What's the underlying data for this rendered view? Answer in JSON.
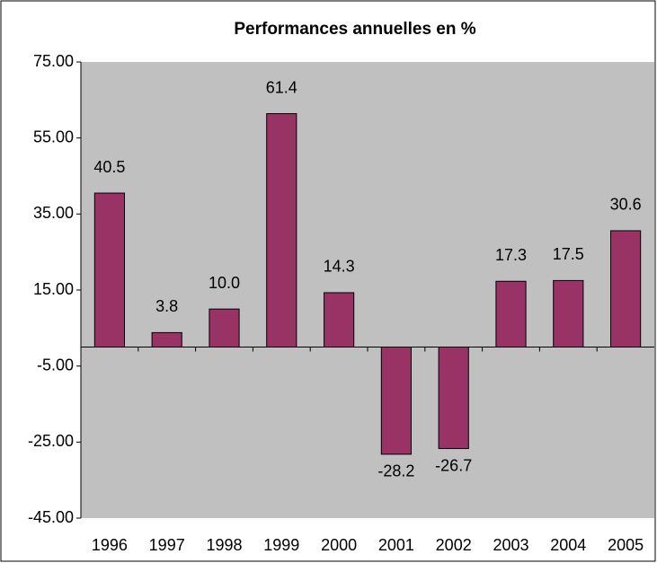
{
  "chart_data": {
    "type": "bar",
    "title": "Performances annuelles en %",
    "categories": [
      "1996",
      "1997",
      "1998",
      "1999",
      "2000",
      "2001",
      "2002",
      "2003",
      "2004",
      "2005"
    ],
    "values": [
      40.5,
      3.8,
      10.0,
      61.4,
      14.3,
      -28.2,
      -26.7,
      17.3,
      17.5,
      30.6
    ],
    "value_labels": [
      "40.5",
      "3.8",
      "10.0",
      "61.4",
      "14.3",
      "-28.2",
      "-26.7",
      "17.3",
      "17.5",
      "30.6"
    ],
    "color": "#993366",
    "ylim": [
      -45,
      75
    ],
    "yticks": [
      {
        "value": -45,
        "label": "-45.00"
      },
      {
        "value": -25,
        "label": "-25.00"
      },
      {
        "value": -5,
        "label": "-5.00"
      },
      {
        "value": 15,
        "label": "15.00"
      },
      {
        "value": 35,
        "label": "35.00"
      },
      {
        "value": 55,
        "label": "55.00"
      },
      {
        "value": 75,
        "label": "75.00"
      }
    ],
    "grid": false
  }
}
